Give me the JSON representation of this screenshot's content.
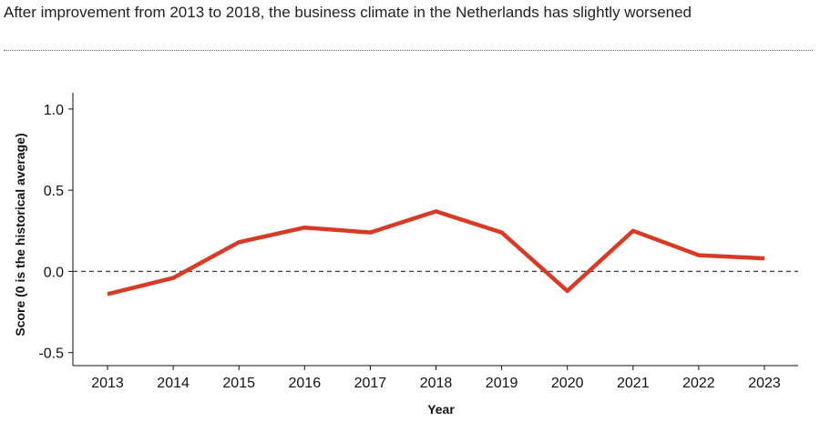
{
  "title": "After improvement from 2013 to 2018, the business climate in the Netherlands has slightly worsened",
  "chart_data": {
    "type": "line",
    "title": "",
    "xlabel": "Year",
    "ylabel": "Score (0 is the historical average)",
    "x": [
      "2013",
      "2014",
      "2015",
      "2016",
      "2017",
      "2018",
      "2019",
      "2020",
      "2021",
      "2022",
      "2023"
    ],
    "series": [
      {
        "values": [
          -0.14,
          -0.04,
          0.18,
          0.27,
          0.24,
          0.37,
          0.24,
          -0.12,
          0.25,
          0.1,
          0.08
        ],
        "color": "#d93a26"
      }
    ],
    "yticks": [
      -0.5,
      0.0,
      0.5,
      1.0
    ],
    "ytick_labels": [
      "-0.5",
      "0.0",
      "0.5",
      "1.0"
    ],
    "ylim": [
      -0.58,
      1.1
    ],
    "reference_line": {
      "y": 0,
      "style": "dashed",
      "color": "#444444"
    },
    "grid": false,
    "legend": "none"
  }
}
